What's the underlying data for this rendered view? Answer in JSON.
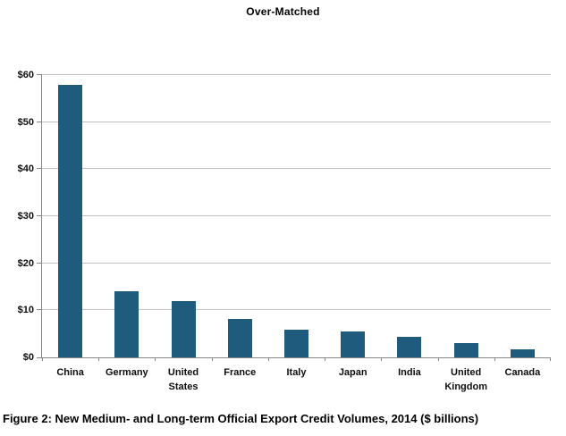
{
  "title": "Over-Matched",
  "caption": "Figure 2: New Medium- and Long-term Official Export Credit Volumes, 2014 ($ billions)",
  "colors": {
    "bar": "#1f5b7c",
    "gridline": "#c0c0c0",
    "axis": "#868686",
    "text": "#000000"
  },
  "chart_data": {
    "type": "bar",
    "title": "Over-Matched",
    "categories": [
      "China",
      "Germany",
      "United States",
      "France",
      "Italy",
      "Japan",
      "India",
      "United Kingdom",
      "Canada"
    ],
    "values": [
      58,
      14,
      12,
      8.2,
      5.9,
      5.5,
      4.4,
      3,
      1.8
    ],
    "xlabel": "",
    "ylabel": "",
    "ylim": [
      0,
      60
    ],
    "ytick_step": 10,
    "ytick_labels": [
      "$0",
      "$10",
      "$20",
      "$30",
      "$40",
      "$50",
      "$60"
    ],
    "grid": true,
    "legend_position": "none",
    "bar_color": "#1f5b7c"
  }
}
